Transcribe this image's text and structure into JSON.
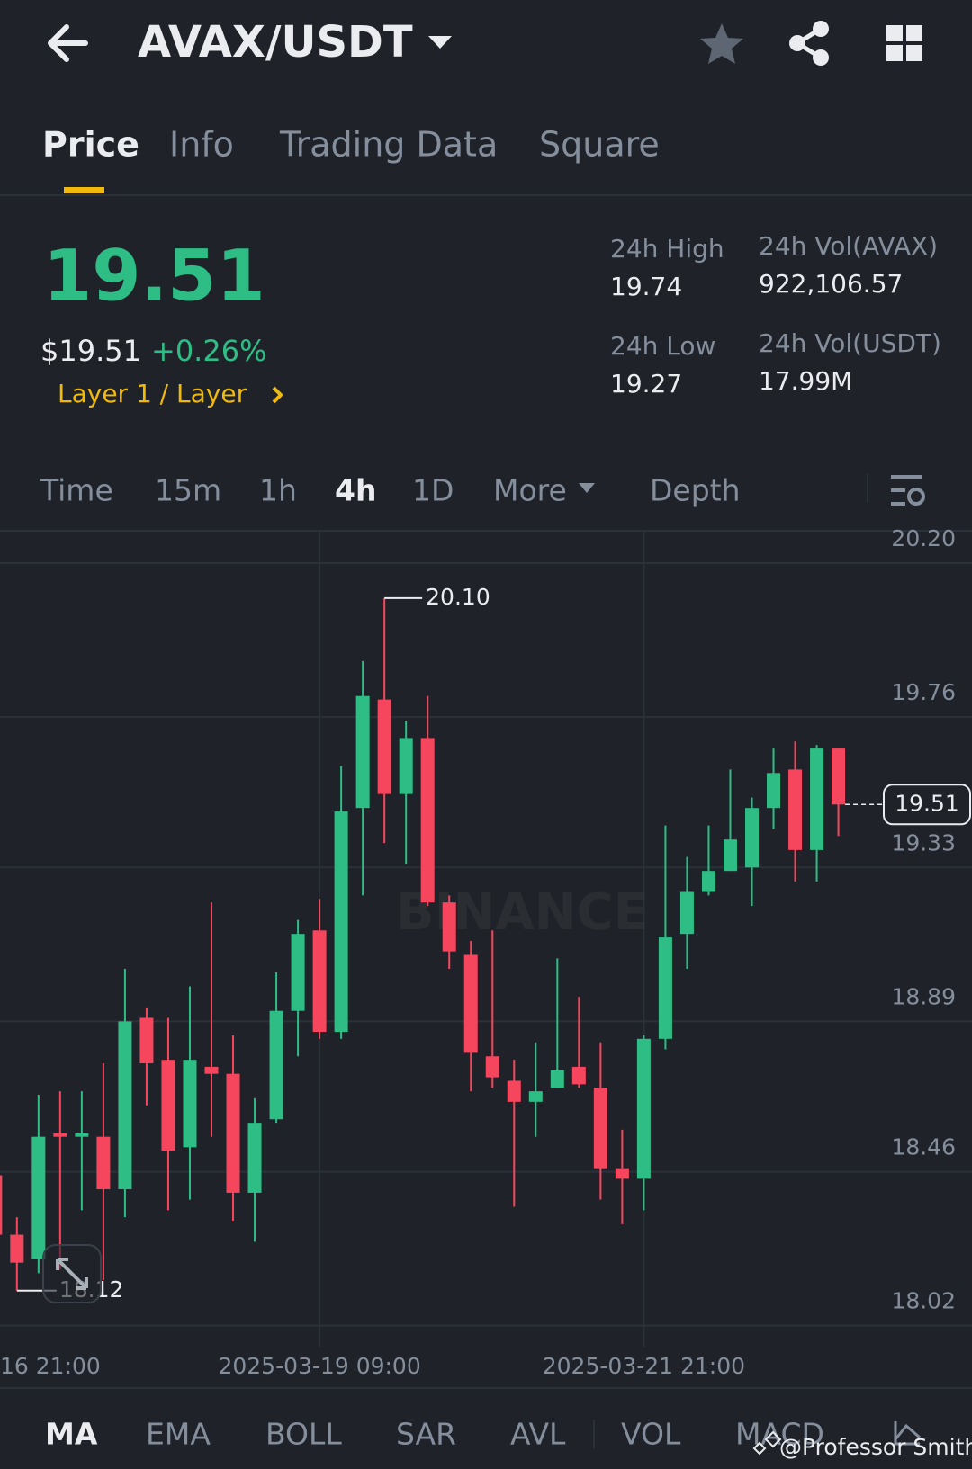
{
  "header": {
    "pair": "AVAX/USDT"
  },
  "tabs": [
    "Price",
    "Info",
    "Trading Data",
    "Square"
  ],
  "ticker": {
    "last": "19.51",
    "usd": "$19.51",
    "change": "+0.26%",
    "tag": "Layer 1 / Layer",
    "stats": [
      {
        "label": "24h High",
        "value": "19.74"
      },
      {
        "label": "24h Vol(AVAX)",
        "value": "922,106.57"
      },
      {
        "label": "24h Low",
        "value": "19.27"
      },
      {
        "label": "24h Vol(USDT)",
        "value": "17.99M"
      }
    ]
  },
  "intervals": [
    "Time",
    "15m",
    "1h",
    "4h",
    "1D",
    "More",
    "Depth"
  ],
  "indicators": [
    "MA",
    "EMA",
    "BOLL",
    "SAR",
    "AVL",
    "VOL",
    "MACD"
  ],
  "credit": "@Professor Smith",
  "chart_data": {
    "type": "candlestick",
    "watermark": "BINANCE",
    "categories": [
      "16 21:00",
      null,
      null,
      null,
      null,
      null,
      null,
      null,
      null,
      null,
      null,
      null,
      null,
      null,
      null,
      "2025-03-19 09:00",
      null,
      null,
      null,
      null,
      null,
      null,
      null,
      null,
      null,
      null,
      null,
      null,
      null,
      null,
      "2025-03-21 21:00",
      null,
      null,
      null,
      null,
      null,
      null,
      null,
      null,
      null
    ],
    "open": [
      18.45,
      18.28,
      18.21,
      18.57,
      18.56,
      18.56,
      18.41,
      18.9,
      18.78,
      18.53,
      18.76,
      18.74,
      18.4,
      18.61,
      18.92,
      19.15,
      18.86,
      19.5,
      19.81,
      19.54,
      19.7,
      19.23,
      19.08,
      18.79,
      18.72,
      18.66,
      18.7,
      18.76,
      18.7,
      18.47,
      18.44,
      18.84,
      19.14,
      19.26,
      19.32,
      19.33,
      19.5,
      19.61,
      19.38,
      19.67
    ],
    "high": [
      18.45,
      18.33,
      18.68,
      18.69,
      18.69,
      18.77,
      19.04,
      18.93,
      18.9,
      18.99,
      19.23,
      18.85,
      18.67,
      19.03,
      19.18,
      19.24,
      19.62,
      19.92,
      20.1,
      19.75,
      19.82,
      19.25,
      19.12,
      19.15,
      18.78,
      18.83,
      19.07,
      18.96,
      18.83,
      18.58,
      18.85,
      19.45,
      19.36,
      19.45,
      19.61,
      19.53,
      19.67,
      19.69,
      19.68,
      19.67
    ],
    "low": [
      18.28,
      18.12,
      18.17,
      18.18,
      18.35,
      18.15,
      18.33,
      18.65,
      18.35,
      18.38,
      18.56,
      18.32,
      18.26,
      18.6,
      18.79,
      18.84,
      18.84,
      19.25,
      19.4,
      19.34,
      19.22,
      19.04,
      18.69,
      18.7,
      18.36,
      18.56,
      18.7,
      18.7,
      18.38,
      18.31,
      18.35,
      18.81,
      19.04,
      19.25,
      19.32,
      19.22,
      19.44,
      19.29,
      19.29,
      19.42
    ],
    "close": [
      18.28,
      18.2,
      18.56,
      18.56,
      18.57,
      18.41,
      18.89,
      18.77,
      18.52,
      18.78,
      18.74,
      18.4,
      18.6,
      18.92,
      19.14,
      18.86,
      19.49,
      19.82,
      19.54,
      19.7,
      19.23,
      19.09,
      18.8,
      18.73,
      18.66,
      18.69,
      18.75,
      18.71,
      18.47,
      18.44,
      18.84,
      19.13,
      19.26,
      19.32,
      19.41,
      19.5,
      19.6,
      19.38,
      19.67,
      19.51
    ],
    "annotations": {
      "high_label": "20.10",
      "low_label": "18.12",
      "last_label": "19.51"
    },
    "up_color": "#2ebd85",
    "down_color": "#f6465d",
    "ylim": [
      17.96,
      20.29
    ],
    "yticks": [
      {
        "value": 20.2,
        "label": "20.20"
      },
      19.76,
      19.33,
      18.89,
      18.46,
      18.02
    ],
    "grid": true
  }
}
